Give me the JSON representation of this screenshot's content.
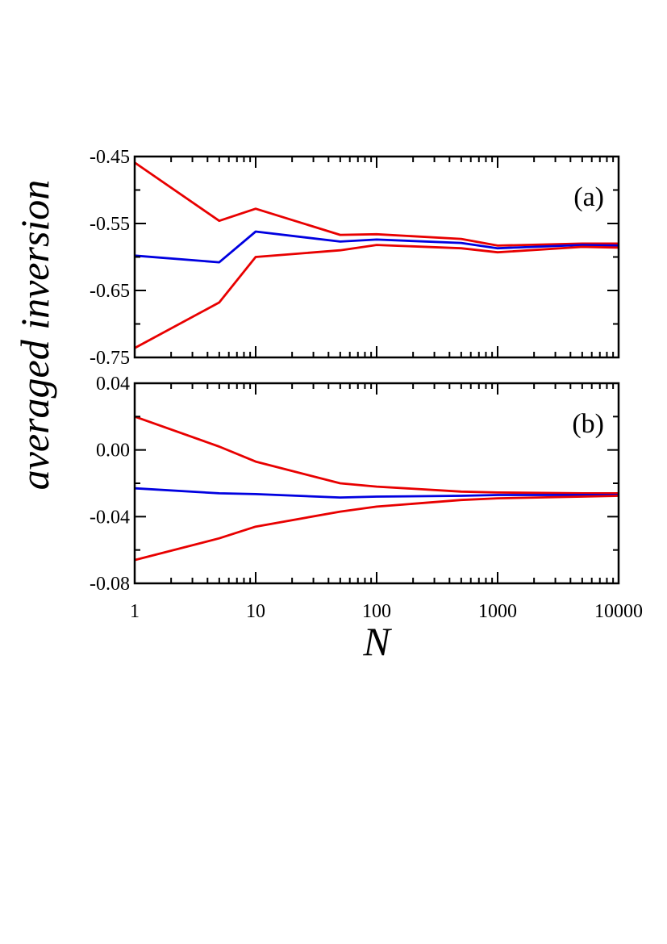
{
  "chart_data": [
    {
      "type": "line",
      "panel_label": "(a)",
      "x_scale": "log",
      "xlim": [
        1,
        10000
      ],
      "ylim": [
        -0.75,
        -0.45
      ],
      "yticks": [
        "-0.45",
        "-0.55",
        "-0.65",
        "-0.75"
      ],
      "ytick_values": [
        -0.45,
        -0.55,
        -0.65,
        -0.75
      ],
      "x": [
        1,
        5,
        10,
        50,
        100,
        500,
        1000,
        5000,
        10000
      ],
      "series": [
        {
          "color": "#e80000",
          "values": [
            -0.459,
            -0.546,
            -0.528,
            -0.567,
            -0.566,
            -0.573,
            -0.583,
            -0.58,
            -0.58
          ]
        },
        {
          "color": "#0000e0",
          "values": [
            -0.598,
            -0.608,
            -0.562,
            -0.577,
            -0.574,
            -0.579,
            -0.587,
            -0.582,
            -0.583
          ]
        },
        {
          "color": "#e80000",
          "values": [
            -0.736,
            -0.668,
            -0.6,
            -0.59,
            -0.582,
            -0.587,
            -0.593,
            -0.585,
            -0.586
          ]
        }
      ]
    },
    {
      "type": "line",
      "panel_label": "(b)",
      "x_scale": "log",
      "xlim": [
        1,
        10000
      ],
      "ylim": [
        -0.08,
        0.04
      ],
      "yticks": [
        "0.04",
        "0.00",
        "-0.04",
        "-0.08"
      ],
      "ytick_values": [
        0.04,
        0.0,
        -0.04,
        -0.08
      ],
      "xticks": [
        "1",
        "10",
        "100",
        "1000",
        "10000"
      ],
      "xtick_values": [
        1,
        10,
        100,
        1000,
        10000
      ],
      "x": [
        1,
        5,
        10,
        50,
        100,
        500,
        1000,
        5000,
        10000
      ],
      "series": [
        {
          "color": "#e80000",
          "values": [
            0.02,
            0.002,
            -0.007,
            -0.02,
            -0.022,
            -0.025,
            -0.0255,
            -0.026,
            -0.026
          ]
        },
        {
          "color": "#0000e0",
          "values": [
            -0.023,
            -0.026,
            -0.0265,
            -0.0285,
            -0.028,
            -0.0275,
            -0.027,
            -0.027,
            -0.027
          ]
        },
        {
          "color": "#e80000",
          "values": [
            -0.066,
            -0.053,
            -0.046,
            -0.037,
            -0.034,
            -0.03,
            -0.029,
            -0.028,
            -0.0275
          ]
        }
      ]
    }
  ],
  "ylabel": "averaged inversion",
  "xlabel": "N"
}
